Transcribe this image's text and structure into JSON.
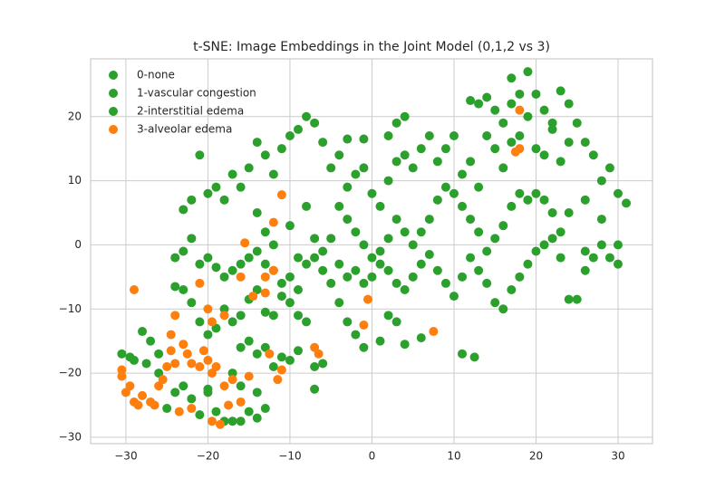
{
  "chart_data": {
    "type": "scatter",
    "title": "t-SNE: Image Embeddings in the Joint Model (0,1,2 vs 3)",
    "xlim": [
      -34.3,
      34.2
    ],
    "ylim": [
      -31.0,
      29.0
    ],
    "xticks": [
      {
        "value": -30,
        "label": "−30"
      },
      {
        "value": -20,
        "label": "−20"
      },
      {
        "value": -10,
        "label": "−10"
      },
      0,
      10,
      20,
      30
    ],
    "yticks": [
      {
        "value": -30,
        "label": "−30"
      },
      {
        "value": -20,
        "label": "−20"
      },
      {
        "value": -10,
        "label": "−10"
      },
      0,
      10,
      20
    ],
    "grid": true,
    "legend": "upper-left",
    "series": [
      {
        "name": "0-none",
        "color": "#2ca02c",
        "x": [
          -30.5,
          5,
          20
        ],
        "values": [
          -17,
          0,
          8
        ]
      },
      {
        "name": "1-vascular congestion",
        "color": "#2ca02c",
        "x": [
          -29.5,
          6,
          21
        ],
        "values": [
          -17.5,
          2,
          7
        ]
      },
      {
        "name": "2-interstitial edema",
        "color": "#2ca02c",
        "x": [
          -29,
          -28,
          -27.5,
          -26,
          -25,
          -24,
          -23,
          -22,
          -21,
          -20,
          -20,
          -19,
          -18,
          -17,
          -16,
          -15,
          -14,
          -13,
          -14,
          -16,
          -17,
          -16,
          -15,
          -14,
          -13,
          -11,
          -12,
          -10,
          -9,
          -7,
          -7,
          -6,
          -8,
          -9,
          -10,
          -11,
          -12,
          -13,
          -14,
          -15,
          -16,
          -17,
          -18,
          -19,
          -20,
          -21,
          -22,
          -23,
          -24,
          -24,
          -23,
          -22,
          -21,
          -20,
          -19,
          -18,
          -17,
          -16,
          -15,
          -14,
          -13,
          -12,
          -11,
          -10,
          -9,
          -8,
          -7,
          -6,
          -5,
          -6,
          -5,
          -4,
          -3,
          -2,
          -1,
          0,
          1,
          2,
          3,
          4,
          5,
          6,
          7,
          8,
          9,
          10,
          11,
          12,
          13,
          14,
          15,
          16,
          17,
          18,
          19,
          20,
          21,
          22,
          23,
          24,
          25,
          26,
          27,
          28,
          29,
          30,
          30,
          23,
          22,
          19,
          18,
          17,
          16,
          15,
          14,
          13,
          12,
          11,
          10,
          9,
          8,
          7,
          4,
          3,
          2,
          1,
          0,
          -1,
          -2,
          -3,
          -4,
          -3,
          -2,
          -1,
          0,
          1,
          2,
          3,
          4,
          5,
          6,
          7,
          8,
          9,
          10,
          11,
          12,
          14,
          15,
          16,
          13,
          12,
          13,
          14,
          15,
          16,
          17,
          18,
          19,
          20,
          21,
          22,
          23,
          24,
          25,
          26,
          27,
          28,
          29,
          30,
          31,
          28,
          26,
          24,
          23,
          24,
          17,
          17,
          18,
          19,
          22,
          2,
          3,
          4,
          -1,
          -3,
          -4,
          -5,
          -6,
          -7,
          -8,
          -9,
          -10,
          -11,
          -12,
          -13,
          -14,
          -15,
          -16,
          -17,
          -18,
          -19,
          -20,
          -21,
          -22,
          -23,
          -14,
          -13,
          -12,
          -10,
          -9,
          -8,
          -7,
          -4,
          -3,
          -2,
          -1,
          1,
          2,
          3,
          4,
          6,
          11,
          12.5,
          20,
          21,
          26,
          -26,
          -27
        ],
        "values": [
          -18,
          -13.5,
          -18.5,
          -20,
          -25.5,
          -23,
          -22,
          -24,
          -26.5,
          -23,
          -22.5,
          -26,
          -27.5,
          -27.5,
          -27.5,
          -26,
          -27,
          -25.5,
          -23,
          -22,
          -20,
          -16,
          -15,
          -17,
          -16,
          -17.5,
          -19,
          -18,
          -16.5,
          -22.5,
          -19,
          -18.5,
          -12,
          -11,
          -9,
          -8,
          -11,
          -10.5,
          -7,
          -8.5,
          -11,
          -12,
          -10,
          -13,
          -14,
          -12,
          -9,
          -7,
          -6.5,
          -2,
          -1,
          1,
          -3,
          -2,
          -3.5,
          -5,
          -4,
          -3,
          -2,
          -1,
          -3,
          -4,
          -6,
          -5,
          -7,
          -3,
          -2,
          -4,
          -6,
          -1,
          1,
          -3,
          -5,
          -4,
          -6,
          -5,
          -3,
          -4,
          -6,
          -7,
          -5,
          -3,
          -1.5,
          -4,
          -6,
          -8,
          -5,
          -2,
          -4,
          -6,
          -9,
          -10,
          -7,
          -5,
          -3,
          -1,
          0,
          1,
          -2,
          -8.5,
          -8.5,
          -1,
          -2,
          0,
          -2,
          -3,
          0,
          2,
          5,
          7,
          8,
          6,
          3,
          1,
          -1,
          2,
          4,
          6,
          8,
          9,
          7,
          4,
          2,
          4,
          1,
          -1,
          -2,
          0,
          2,
          4,
          6,
          9,
          11,
          12,
          8,
          6,
          10,
          13,
          14,
          12,
          15,
          17,
          13,
          15,
          17,
          11,
          13,
          17,
          15,
          12,
          9,
          22.5,
          22,
          23,
          21,
          19,
          16,
          17,
          20,
          23.5,
          21,
          18,
          24,
          22,
          19,
          16,
          14,
          10,
          12,
          8,
          6.5,
          4,
          7,
          5,
          13,
          16,
          22,
          26,
          23.5,
          27,
          19,
          17,
          19,
          20,
          16.5,
          16.5,
          14,
          12,
          16,
          19,
          20,
          18,
          17,
          15,
          11,
          14,
          16,
          12,
          9,
          11,
          7,
          9,
          8,
          14,
          7,
          5.5,
          5,
          2,
          0,
          3,
          -2,
          6,
          1,
          -9,
          -12,
          -14,
          -16,
          -15,
          -11,
          -12,
          -15.5,
          -14.5,
          -17,
          -17.5,
          15,
          14,
          -4,
          -17,
          -15
        ]
      },
      {
        "name": "3-alveolar edema",
        "color": "#ff7f0e",
        "x": [
          -29,
          -30.5,
          -30.5,
          -30,
          -29.5,
          -29,
          -28.5,
          -28,
          -27,
          -26.5,
          -26,
          -25.5,
          -25,
          -24.5,
          -24,
          -24,
          -24.5,
          -23,
          -22.5,
          -22,
          -21,
          -20.5,
          -20,
          -19.5,
          -19,
          -19.5,
          -18,
          -21,
          -20,
          -22,
          -23.5,
          -19.5,
          -18.5,
          -17.5,
          -16,
          -17,
          -15,
          -14.5,
          -13,
          -13,
          -12,
          -16,
          -15.5,
          -12,
          -11,
          -11,
          -11.5,
          -12.5,
          -6.5,
          -7,
          -0.5,
          -1,
          7.5,
          17.5,
          18,
          18,
          -18
        ],
        "values": [
          -7,
          -19.5,
          -20.5,
          -23,
          -22,
          -24.5,
          -25,
          -23.5,
          -24.5,
          -25,
          -22,
          -21,
          -19,
          -16.5,
          -18.5,
          -11,
          -14,
          -15.5,
          -17,
          -18.5,
          -19,
          -16.5,
          -18,
          -20,
          -19,
          -12,
          -11,
          -6,
          -10,
          -25.5,
          -26,
          -27.5,
          -28,
          -25,
          -24.5,
          -21,
          -20.5,
          -8,
          -7.5,
          -5,
          -4,
          -5,
          0.3,
          3.5,
          7.8,
          -19.5,
          -21,
          -17,
          -17,
          -16,
          -8.5,
          -12.5,
          -13.5,
          14.5,
          15,
          21,
          -22
        ]
      }
    ]
  }
}
